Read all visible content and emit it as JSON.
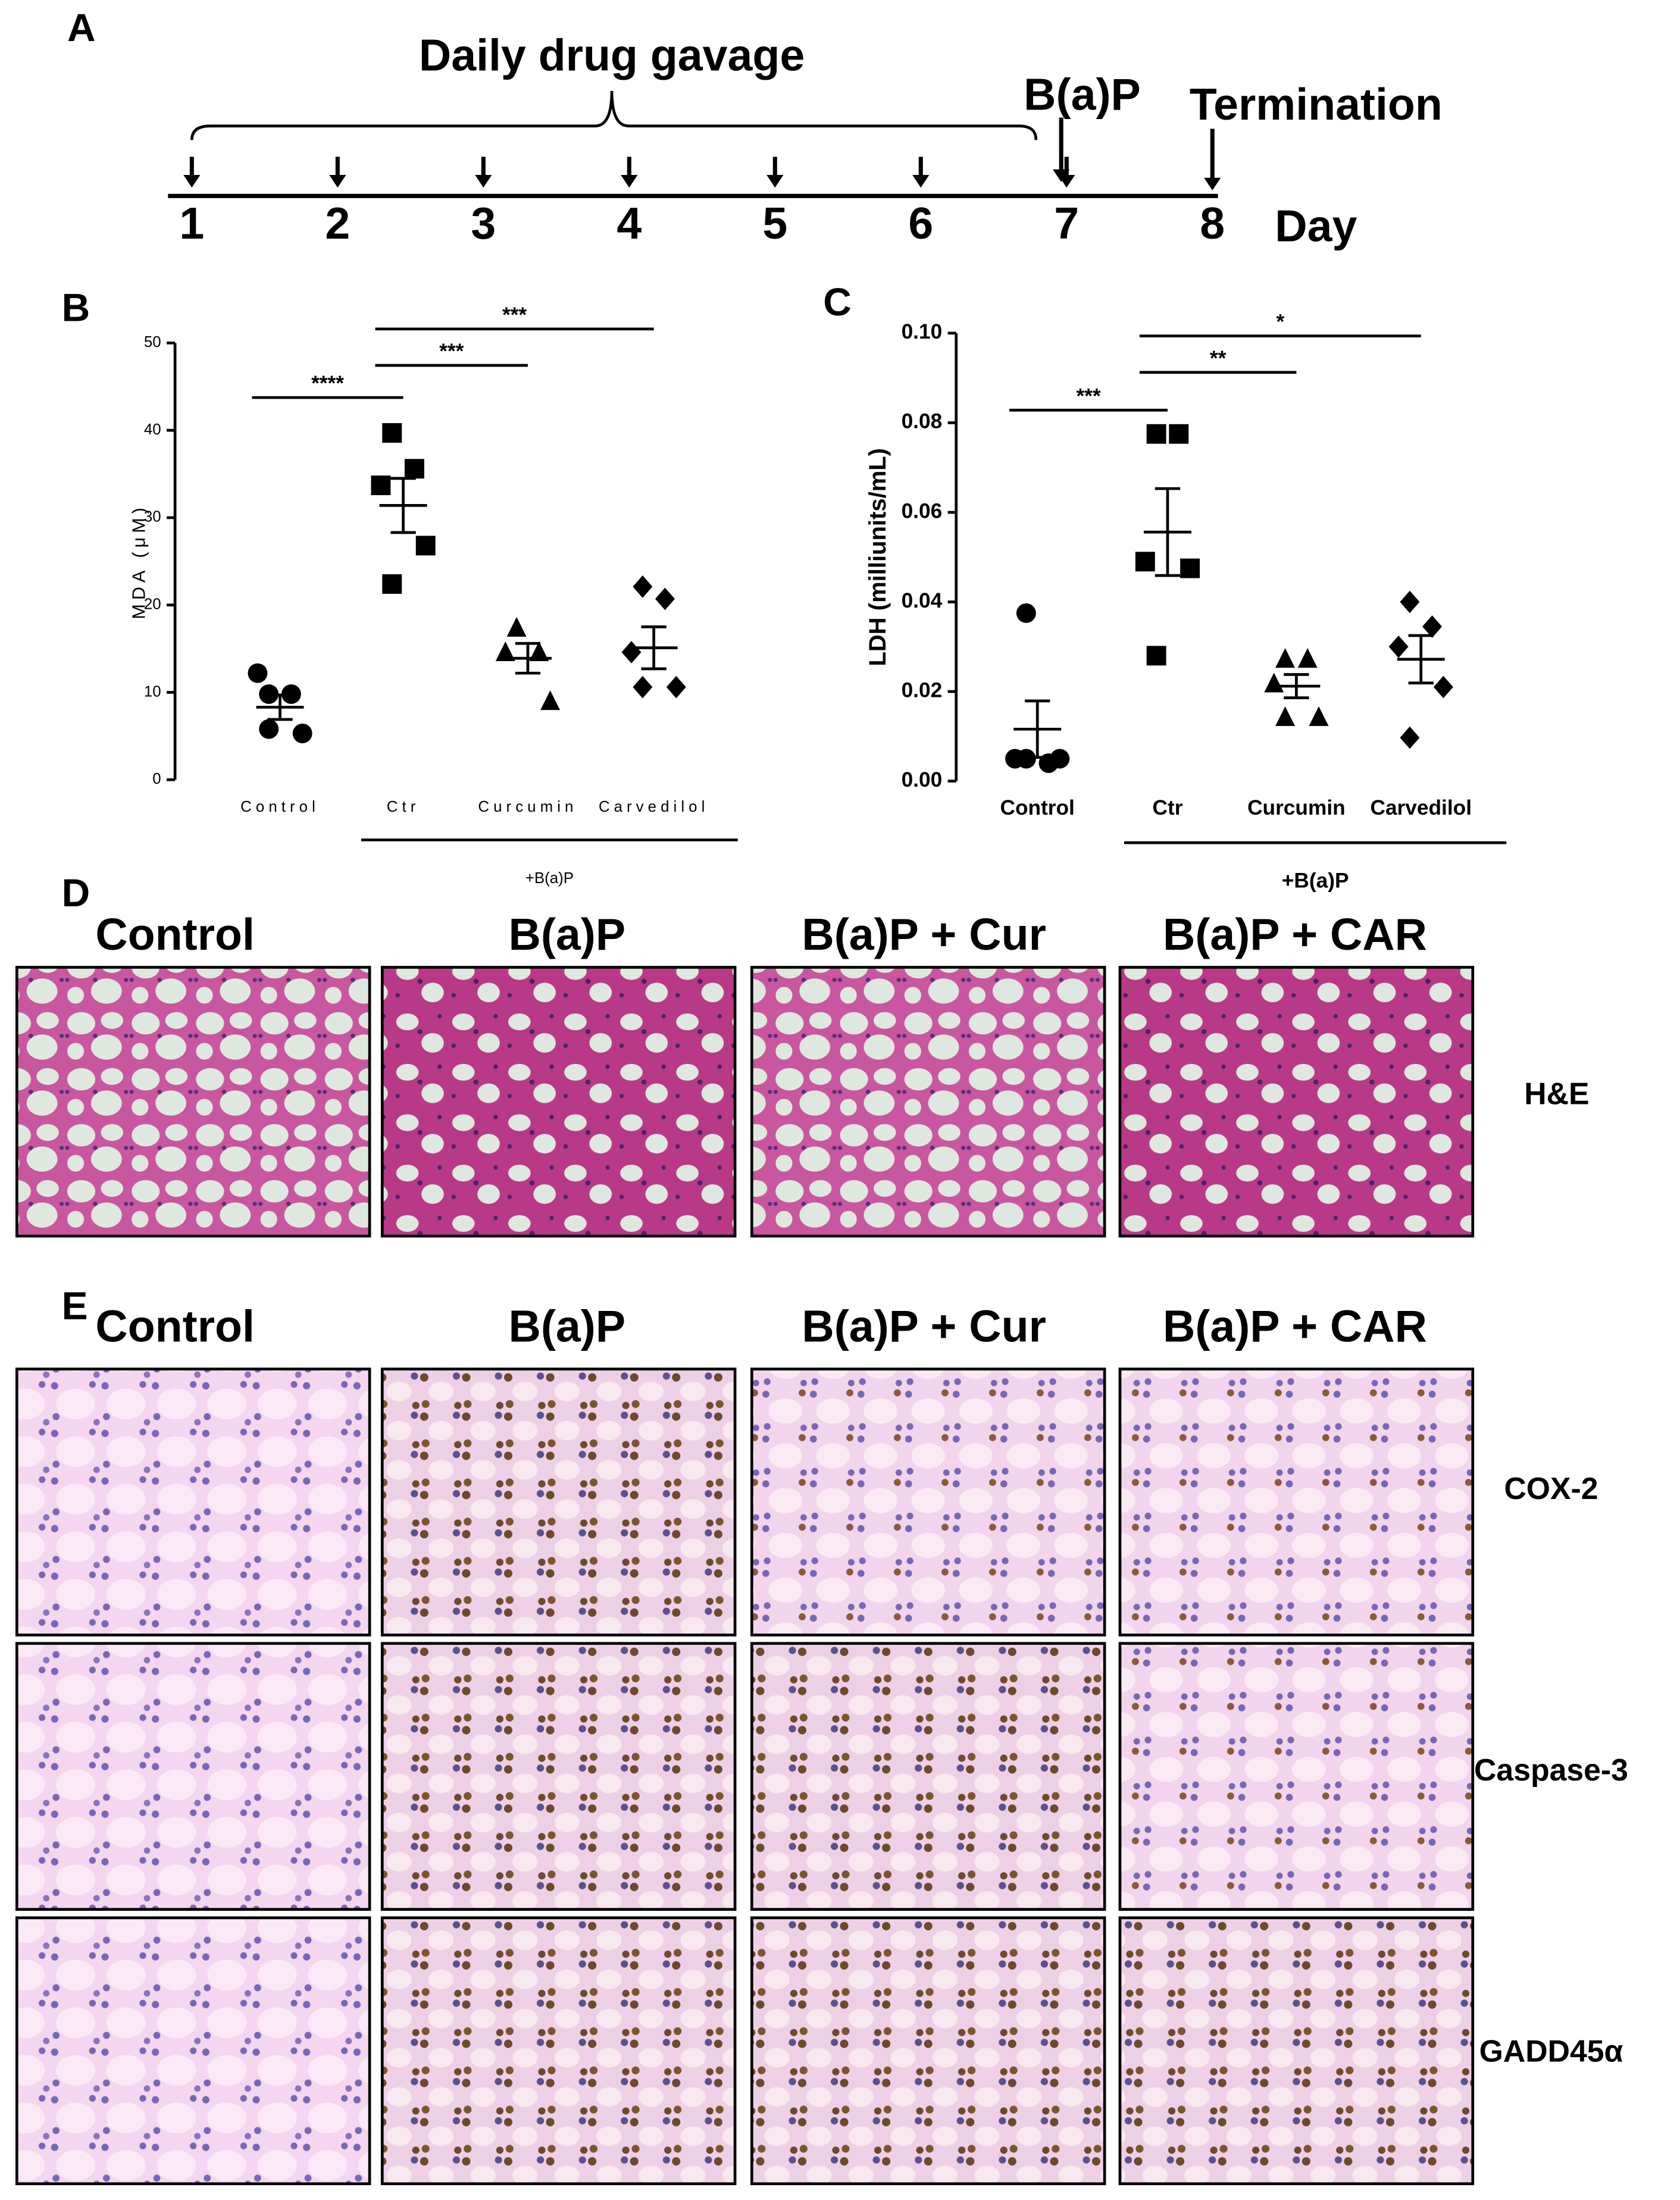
{
  "panel_labels": [
    "A",
    "B",
    "C",
    "D",
    "E"
  ],
  "timeline": {
    "title": "Daily drug gavage",
    "days": [
      1,
      2,
      3,
      4,
      5,
      6,
      7,
      8
    ],
    "day_label": "Day",
    "exposure_label": "B(a)P",
    "end_label": "Termination"
  },
  "chart_data": [
    {
      "type": "dotplot",
      "ylabel": "MDA (μM)",
      "categories": [
        "Control",
        "Ctr",
        "Curcumin",
        "Carvedilol"
      ],
      "markers": [
        "circle",
        "square",
        "triangle",
        "diamond"
      ],
      "color": "#000000",
      "points": [
        [
          9.8,
          9.8,
          12.2,
          5.3,
          5.8
        ],
        [
          39.7,
          35.6,
          33.7,
          26.8,
          22.4
        ],
        [
          17.5,
          14.7,
          14.7,
          9.1
        ],
        [
          22.1,
          20.7,
          14.6,
          10.6,
          10.6
        ]
      ],
      "means": [
        8.3,
        31.4,
        13.9,
        15.1
      ],
      "sems": [
        1.4,
        3.1,
        1.7,
        2.4
      ],
      "ylim": [
        0,
        50
      ],
      "yticks": [
        0,
        10,
        20,
        30,
        40,
        50
      ],
      "annotations": [
        {
          "label": "****",
          "between": [
            "Control",
            "Ctr"
          ]
        },
        {
          "label": "***",
          "between": [
            "Ctr",
            "Curcumin"
          ]
        },
        {
          "label": "***",
          "between": [
            "Ctr",
            "Carvedilol"
          ]
        }
      ],
      "group_label": {
        "text": "+B(a)P",
        "span": [
          "Ctr",
          "Carvedilol"
        ]
      }
    },
    {
      "type": "dotplot",
      "ylabel": "LDH (milliunits/mL)",
      "categories": [
        "Control",
        "Ctr",
        "Curcumin",
        "Carvedilol"
      ],
      "markers": [
        "circle",
        "square",
        "triangle",
        "diamond"
      ],
      "color": "#000000",
      "points": [
        [
          0.0375,
          0.004,
          0.005,
          0.005,
          0.005
        ],
        [
          0.0775,
          0.0775,
          0.049,
          0.0475,
          0.028
        ],
        [
          0.0275,
          0.0275,
          0.022,
          0.0145,
          0.0145
        ],
        [
          0.04,
          0.0345,
          0.03,
          0.021,
          0.0097
        ]
      ],
      "means": [
        0.0116,
        0.0556,
        0.0212,
        0.0272
      ],
      "sems": [
        0.0063,
        0.0097,
        0.0026,
        0.0053
      ],
      "ylim": [
        0,
        0.1
      ],
      "yticks": [
        {
          "value": 0,
          "label": "0.00"
        },
        {
          "value": 0.02,
          "label": "0.02"
        },
        {
          "value": 0.04,
          "label": "0.04"
        },
        {
          "value": 0.06,
          "label": "0.06"
        },
        {
          "value": 0.08,
          "label": "0.08"
        },
        {
          "value": 0.1,
          "label": "0.10"
        }
      ],
      "annotations": [
        {
          "label": "***",
          "between": [
            "Control",
            "Ctr"
          ]
        },
        {
          "label": "**",
          "between": [
            "Ctr",
            "Curcumin"
          ]
        },
        {
          "label": "*",
          "between": [
            "Ctr",
            "Carvedilol"
          ]
        }
      ],
      "group_label": {
        "text": "+B(a)P",
        "span": [
          "Ctr",
          "Carvedilol"
        ]
      }
    }
  ],
  "histology": {
    "he_columns": [
      "Control",
      "B(a)P",
      "B(a)P + Cur",
      "B(a)P + CAR"
    ],
    "he_row": "H&E",
    "ihc_columns": [
      "Control",
      "B(a)P",
      "B(a)P + Cur",
      "B(a)P + CAR"
    ],
    "ihc_rows": [
      "COX-2",
      "Caspase-3",
      "GADD45α"
    ]
  }
}
